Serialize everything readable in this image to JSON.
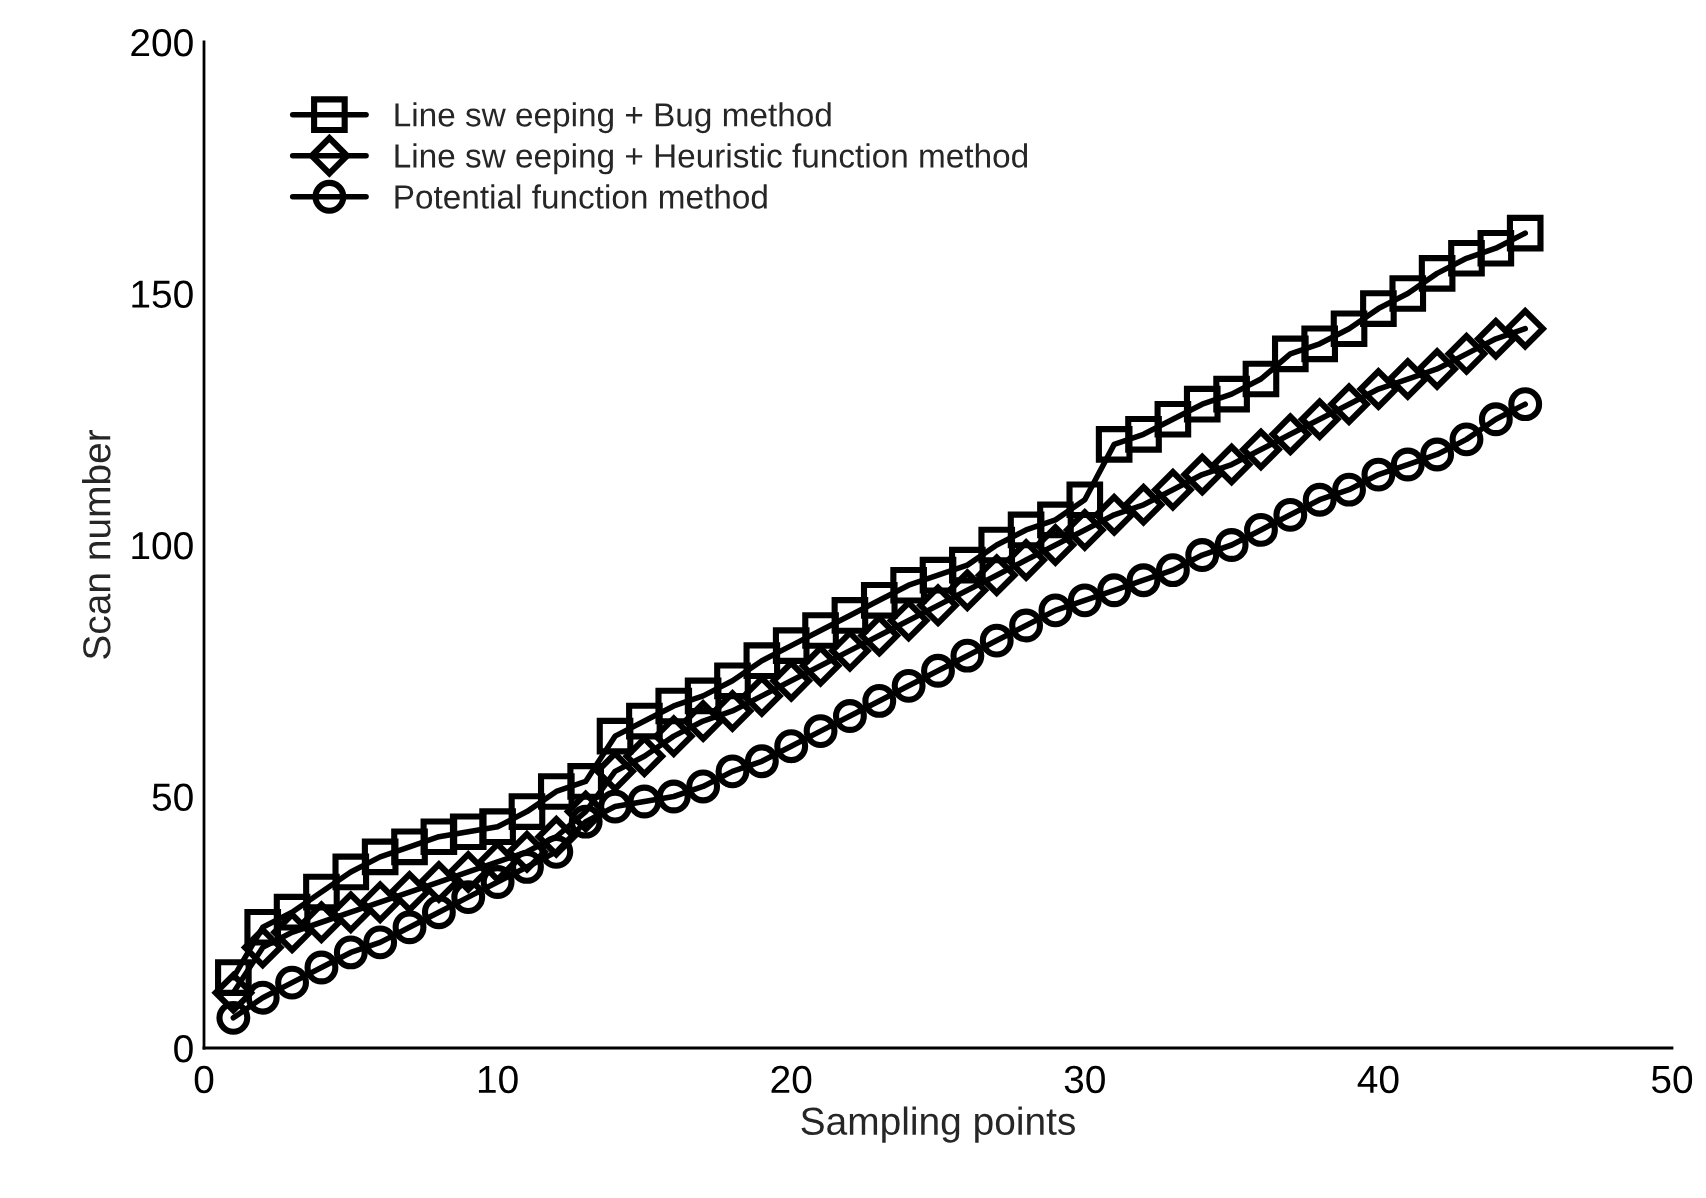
{
  "chart_data": {
    "type": "line",
    "xlabel": "Sampling points",
    "ylabel": "Scan number",
    "xlim": [
      0,
      50
    ],
    "xticks": [
      0,
      10,
      20,
      30,
      40,
      50
    ],
    "ylim": [
      0,
      200
    ],
    "yticks": [
      0,
      50,
      100,
      150,
      200
    ],
    "grid": false,
    "legend": "top left",
    "line_style": "solid",
    "x": [
      1,
      2,
      3,
      4,
      5,
      6,
      7,
      8,
      9,
      10,
      11,
      12,
      13,
      14,
      15,
      16,
      17,
      18,
      19,
      20,
      21,
      22,
      23,
      24,
      25,
      26,
      27,
      28,
      29,
      30,
      31,
      32,
      33,
      34,
      35,
      36,
      37,
      38,
      39,
      40,
      41,
      42,
      43,
      44,
      45
    ],
    "series": [
      {
        "name": "Line sw eeping + Bug method",
        "color": "#000000",
        "marker": "square",
        "values": [
          14,
          24,
          27,
          31,
          35,
          38,
          40,
          42,
          43,
          44,
          47,
          51,
          53,
          62,
          65,
          68,
          70,
          73,
          77,
          80,
          83,
          86,
          89,
          92,
          94,
          96,
          100,
          103,
          105,
          109,
          120,
          122,
          125,
          128,
          130,
          133,
          138,
          140,
          143,
          147,
          150,
          154,
          157,
          159,
          162
        ]
      },
      {
        "name": "Line sw eeping + Heuristic function method",
        "color": "#000000",
        "marker": "diamond",
        "values": [
          11,
          20,
          23,
          25,
          27,
          29,
          31,
          33,
          35,
          37,
          39,
          42,
          47,
          55,
          58,
          62,
          65,
          67,
          70,
          73,
          76,
          79,
          82,
          85,
          88,
          91,
          94,
          97,
          100,
          103,
          106,
          108,
          111,
          114,
          116,
          119,
          122,
          125,
          128,
          131,
          133,
          135,
          138,
          141,
          143
        ]
      },
      {
        "name": "Potential function method",
        "color": "#000000",
        "marker": "circle",
        "values": [
          6,
          10,
          13,
          16,
          19,
          21,
          24,
          27,
          30,
          33,
          36,
          39,
          45,
          48,
          49,
          50,
          52,
          55,
          57,
          60,
          63,
          66,
          69,
          72,
          75,
          78,
          81,
          84,
          87,
          89,
          91,
          93,
          95,
          98,
          100,
          103,
          106,
          109,
          111,
          114,
          116,
          118,
          121,
          125,
          128
        ]
      }
    ]
  }
}
